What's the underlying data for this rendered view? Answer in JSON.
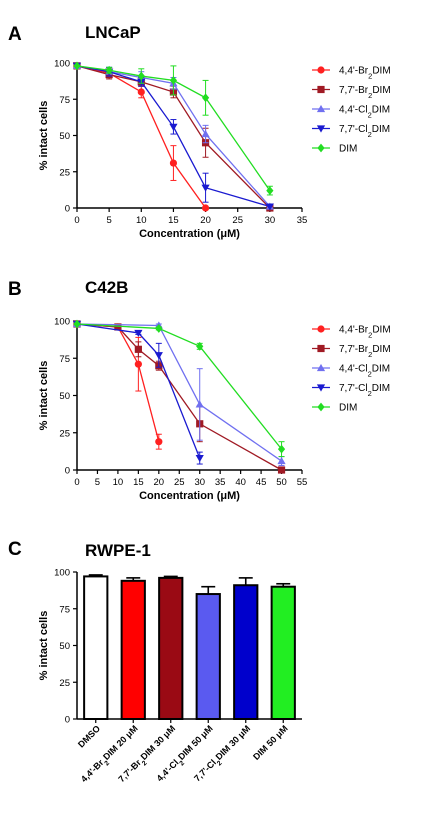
{
  "chart_data": [
    {
      "type": "line",
      "panel": "A",
      "title": "LNCaP",
      "xlabel": "Concentration (μM)",
      "ylabel": "% intact cells",
      "xlim": [
        0,
        35
      ],
      "ylim": [
        0,
        100
      ],
      "xticks": [
        0,
        5,
        10,
        15,
        20,
        25,
        30,
        35
      ],
      "yticks": [
        0,
        25,
        50,
        75,
        100
      ],
      "grid": false,
      "legend_position": "right",
      "series": [
        {
          "name": "4,4'-Br2DIM",
          "name_parts": [
            [
              "4,4'-Br",
              ""
            ],
            [
              "2",
              "sub"
            ],
            [
              "DIM",
              ""
            ]
          ],
          "color": "#ff2020",
          "marker": "circle",
          "x": [
            0,
            5,
            10,
            15,
            20
          ],
          "y": [
            98,
            93,
            80,
            31,
            0
          ],
          "err": [
            0,
            3,
            4,
            12,
            0
          ]
        },
        {
          "name": "7,7'-Br2DIM",
          "name_parts": [
            [
              "7,7'-Br",
              ""
            ],
            [
              "2",
              "sub"
            ],
            [
              "DIM",
              ""
            ]
          ],
          "color": "#a01a24",
          "marker": "square",
          "x": [
            0,
            5,
            10,
            15,
            20,
            30
          ],
          "y": [
            98,
            92,
            87,
            80,
            45,
            0
          ],
          "err": [
            0,
            3,
            3,
            4,
            10,
            0
          ]
        },
        {
          "name": "4,4'-Cl2DIM",
          "name_parts": [
            [
              "4,4'-Cl",
              ""
            ],
            [
              "2",
              "sub"
            ],
            [
              "DIM",
              ""
            ]
          ],
          "color": "#7070f0",
          "marker": "triangle-up",
          "x": [
            0,
            5,
            10,
            15,
            20,
            30
          ],
          "y": [
            98,
            94,
            90,
            86,
            51,
            1
          ],
          "err": [
            0,
            3,
            4,
            4,
            6,
            0
          ]
        },
        {
          "name": "7,7'-Cl2DIM",
          "name_parts": [
            [
              "7,7'-Cl",
              ""
            ],
            [
              "2",
              "sub"
            ],
            [
              "DIM",
              ""
            ]
          ],
          "color": "#1a1ad0",
          "marker": "triangle-down",
          "x": [
            0,
            5,
            10,
            15,
            20,
            30
          ],
          "y": [
            98,
            94,
            87,
            56,
            14,
            1
          ],
          "err": [
            0,
            3,
            3,
            5,
            10,
            0
          ]
        },
        {
          "name": "DIM",
          "name_parts": [
            [
              "DIM",
              ""
            ]
          ],
          "color": "#22dd22",
          "marker": "diamond",
          "x": [
            0,
            5,
            10,
            15,
            20,
            30
          ],
          "y": [
            98,
            95,
            91,
            88,
            76,
            12
          ],
          "err": [
            0,
            2,
            5,
            10,
            12,
            3
          ]
        }
      ]
    },
    {
      "type": "line",
      "panel": "B",
      "title": "C42B",
      "xlabel": "Concentration (μM)",
      "ylabel": "% intact cells",
      "xlim": [
        0,
        55
      ],
      "ylim": [
        0,
        100
      ],
      "xticks": [
        0,
        5,
        10,
        15,
        20,
        25,
        30,
        35,
        40,
        45,
        50,
        55
      ],
      "yticks": [
        0,
        25,
        50,
        75,
        100
      ],
      "grid": false,
      "legend_position": "right",
      "series": [
        {
          "name": "4,4'-Br2DIM",
          "name_parts": [
            [
              "4,4'-Br",
              ""
            ],
            [
              "2",
              "sub"
            ],
            [
              "DIM",
              ""
            ]
          ],
          "color": "#ff2020",
          "marker": "circle",
          "x": [
            0,
            10,
            15,
            20
          ],
          "y": [
            98,
            96,
            71,
            19
          ],
          "err": [
            0,
            1,
            18,
            5
          ]
        },
        {
          "name": "7,7'-Br2DIM",
          "name_parts": [
            [
              "7,7'-Br",
              ""
            ],
            [
              "2",
              "sub"
            ],
            [
              "DIM",
              ""
            ]
          ],
          "color": "#a01a24",
          "marker": "square",
          "x": [
            0,
            10,
            15,
            20,
            30,
            50
          ],
          "y": [
            98,
            96,
            81,
            70,
            31,
            0
          ],
          "err": [
            0,
            1,
            5,
            3,
            12,
            0
          ]
        },
        {
          "name": "4,4'-Cl2DIM",
          "name_parts": [
            [
              "4,4'-Cl",
              ""
            ],
            [
              "2",
              "sub"
            ],
            [
              "DIM",
              ""
            ]
          ],
          "color": "#7070f0",
          "marker": "triangle-up",
          "x": [
            0,
            20,
            30,
            50
          ],
          "y": [
            98,
            97,
            44,
            6
          ],
          "err": [
            0,
            1,
            24,
            3
          ]
        },
        {
          "name": "7,7'-Cl2DIM",
          "name_parts": [
            [
              "7,7'-Cl",
              ""
            ],
            [
              "2",
              "sub"
            ],
            [
              "DIM",
              ""
            ]
          ],
          "color": "#1a1ad0",
          "marker": "triangle-down",
          "x": [
            0,
            15,
            20,
            30
          ],
          "y": [
            98,
            92,
            77,
            8
          ],
          "err": [
            0,
            1,
            8,
            4
          ]
        },
        {
          "name": "DIM",
          "name_parts": [
            [
              "DIM",
              ""
            ]
          ],
          "color": "#22dd22",
          "marker": "diamond",
          "x": [
            0,
            20,
            30,
            50
          ],
          "y": [
            98,
            95,
            83,
            14
          ],
          "err": [
            0,
            1,
            2,
            5
          ]
        }
      ]
    },
    {
      "type": "bar",
      "panel": "C",
      "title": "RWPE-1",
      "ylabel": "% intact cells",
      "ylim": [
        0,
        100
      ],
      "yticks": [
        0,
        25,
        50,
        75,
        100
      ],
      "grid": false,
      "categories": [
        "DMSO",
        "4,4'-Br2DIM 20 μM",
        "7,7'-Br2DIM 30 μM",
        "4,4'-Cl2DIM 50 μM",
        "7,7'-Cl2DIM 30 μM",
        "DIM 50 μM"
      ],
      "category_parts": [
        [
          [
            "DMSO",
            ""
          ]
        ],
        [
          [
            "4,4'-Br",
            ""
          ],
          [
            "2",
            "sub"
          ],
          [
            "DIM 20 μM",
            ""
          ]
        ],
        [
          [
            "7,7'-Br",
            ""
          ],
          [
            "2",
            "sub"
          ],
          [
            "DIM 30 μM",
            ""
          ]
        ],
        [
          [
            "4,4'-Cl",
            ""
          ],
          [
            "2",
            "sub"
          ],
          [
            "DIM 50 μM",
            ""
          ]
        ],
        [
          [
            "7,7'-Cl",
            ""
          ],
          [
            "2",
            "sub"
          ],
          [
            "DIM 30 μM",
            ""
          ]
        ],
        [
          [
            "DIM 50 μM",
            ""
          ]
        ]
      ],
      "values": [
        97,
        94,
        96,
        85,
        91,
        90
      ],
      "err": [
        1,
        2,
        1,
        5,
        5,
        2
      ],
      "colors": [
        "#ffffff",
        "#ff0000",
        "#9a0a14",
        "#5a5af0",
        "#0000cc",
        "#22ee22"
      ]
    }
  ]
}
